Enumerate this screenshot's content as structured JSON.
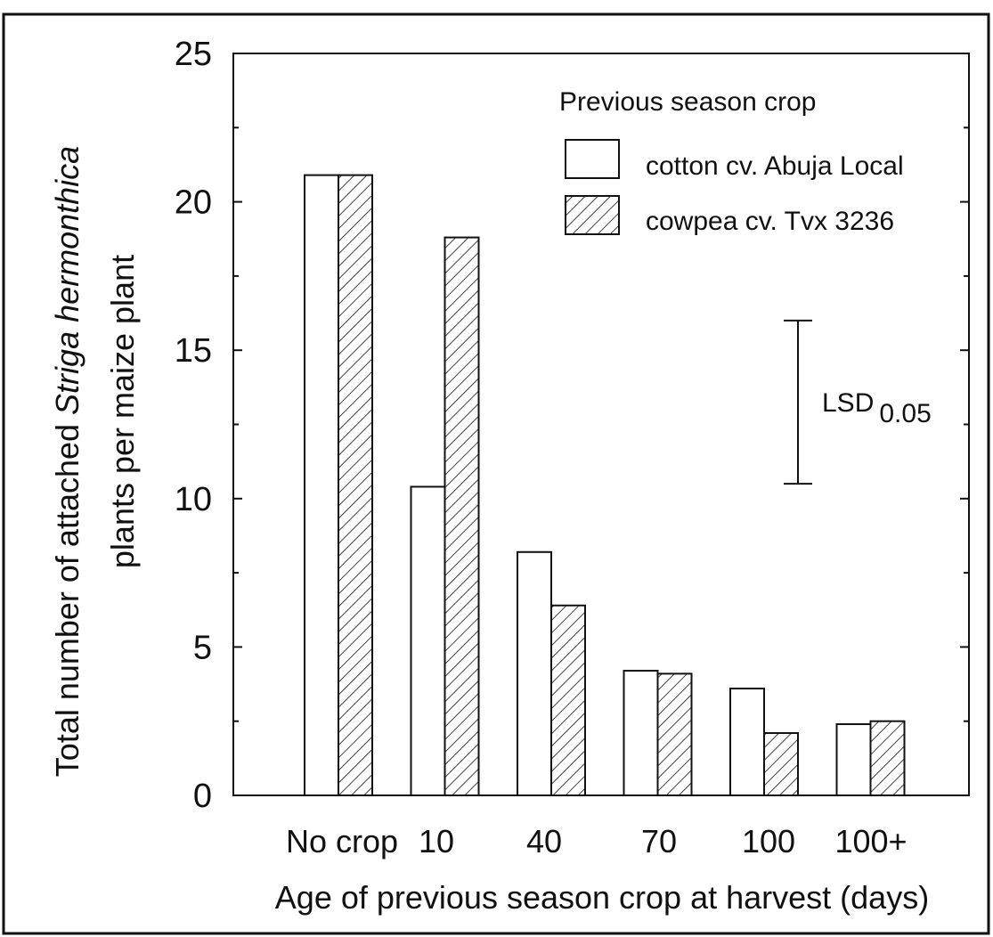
{
  "chart_data": {
    "type": "bar",
    "xlabel": "Age of previous season crop at harvest (days)",
    "ylabel": {
      "line1_prefix": "Total number of attached ",
      "line1_italic": "Striga hermonthica",
      "line2": "plants per maize plant"
    },
    "categories": [
      "No crop",
      "10",
      "40",
      "70",
      "100",
      "100+"
    ],
    "ylim": [
      0,
      25
    ],
    "yticks": [
      0,
      5,
      10,
      15,
      20,
      25
    ],
    "grid": false,
    "legend": {
      "title": "Previous season crop",
      "position": "top-right"
    },
    "series": [
      {
        "name": "cotton cv. Abuja Local",
        "fill": "none",
        "values": [
          20.9,
          10.4,
          8.2,
          4.2,
          3.6,
          2.4
        ]
      },
      {
        "name": "cowpea cv. Tvx 3236",
        "fill": "hatched",
        "values": [
          20.9,
          18.8,
          6.4,
          4.1,
          2.1,
          2.5
        ]
      }
    ],
    "annotations": [
      {
        "type": "error-bar",
        "label": "LSD",
        "subscript": "0.05",
        "y_low": 10.5,
        "y_high": 16.0
      }
    ]
  },
  "colors": {
    "ink": "#111111",
    "background": "#ffffff",
    "bar_fill": "#ffffff"
  }
}
